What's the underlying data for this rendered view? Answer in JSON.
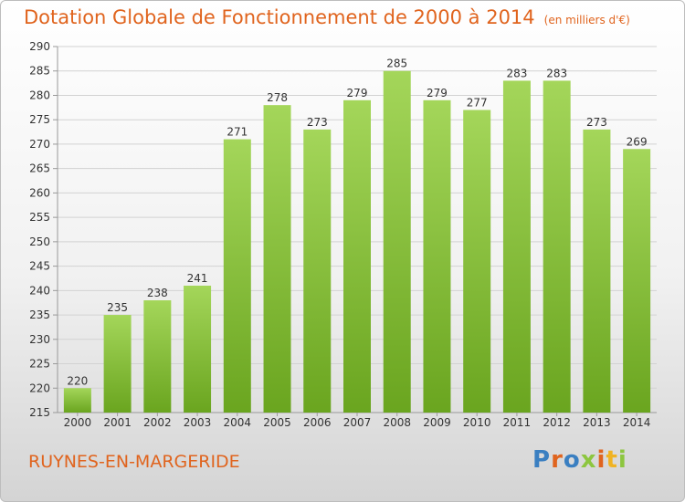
{
  "header": {
    "title": "Dotation Globale de Fonctionnement de 2000 à 2014",
    "subtitle": "(en milliers d'€)"
  },
  "footer": {
    "commune": "RUYNES-EN-MARGERIDE",
    "logo_text": "Proxiti",
    "logo_colors": [
      "#3a7fc1",
      "#e0641e",
      "#3a7fc1",
      "#8dc63f",
      "#e0641e",
      "#f0b323",
      "#8dc63f"
    ]
  },
  "colors": {
    "bar_light": "#a4d65a",
    "bar_dark": "#6aa51f",
    "grid": "#d2d2d2",
    "accent": "#e0641e"
  },
  "chart_data": {
    "type": "bar",
    "title": "Dotation Globale de Fonctionnement de 2000 à 2014",
    "subtitle": "(en milliers d'€)",
    "categories": [
      "2000",
      "2001",
      "2002",
      "2003",
      "2004",
      "2005",
      "2006",
      "2007",
      "2008",
      "2009",
      "2010",
      "2011",
      "2012",
      "2013",
      "2014"
    ],
    "values": [
      220,
      235,
      238,
      241,
      271,
      278,
      273,
      279,
      285,
      279,
      277,
      283,
      283,
      273,
      269
    ],
    "ylim": [
      215,
      290
    ],
    "yticks": [
      215,
      220,
      225,
      230,
      235,
      240,
      245,
      250,
      255,
      260,
      265,
      270,
      275,
      280,
      285,
      290
    ],
    "grid": true,
    "xlabel": "",
    "ylabel": ""
  }
}
